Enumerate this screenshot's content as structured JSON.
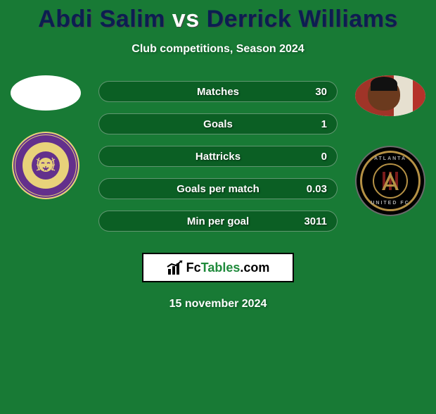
{
  "background_color": "#187a35",
  "title": {
    "player1": "Abdi Salim",
    "vs": "vs",
    "player2": "Derrick Williams",
    "player1_color": "#0b1e51",
    "vs_color": "#ffffff",
    "player2_color": "#0b1e51"
  },
  "subtitle": "Club competitions, Season 2024",
  "stats": [
    {
      "label": "Matches",
      "value": "30",
      "bar_color": "#0b5f24"
    },
    {
      "label": "Goals",
      "value": "1",
      "bar_color": "#0b5f24"
    },
    {
      "label": "Hattricks",
      "value": "0",
      "bar_color": "#0b5f24"
    },
    {
      "label": "Goals per match",
      "value": "0.03",
      "bar_color": "#0b5f24"
    },
    {
      "label": "Min per goal",
      "value": "3011",
      "bar_color": "#0b5f24"
    }
  ],
  "watermark": {
    "brand_part1": "Fc",
    "brand_part2": "Tables",
    "brand_part3": ".com"
  },
  "date": "15 november 2024",
  "left": {
    "player_photo_bg": "#ffffff",
    "club": "Orlando City",
    "club_colors": {
      "primary": "#63308c",
      "accent": "#e8d27a"
    }
  },
  "right": {
    "player_photo": "present",
    "club": "Atlanta United FC",
    "club_colors": {
      "primary": "#000000",
      "gold": "#b59145",
      "grey": "#6a6a6a"
    },
    "club_stripes": [
      "#7a1c1c",
      "#000000",
      "#7a1c1c",
      "#000000",
      "#7a1c1c"
    ]
  }
}
